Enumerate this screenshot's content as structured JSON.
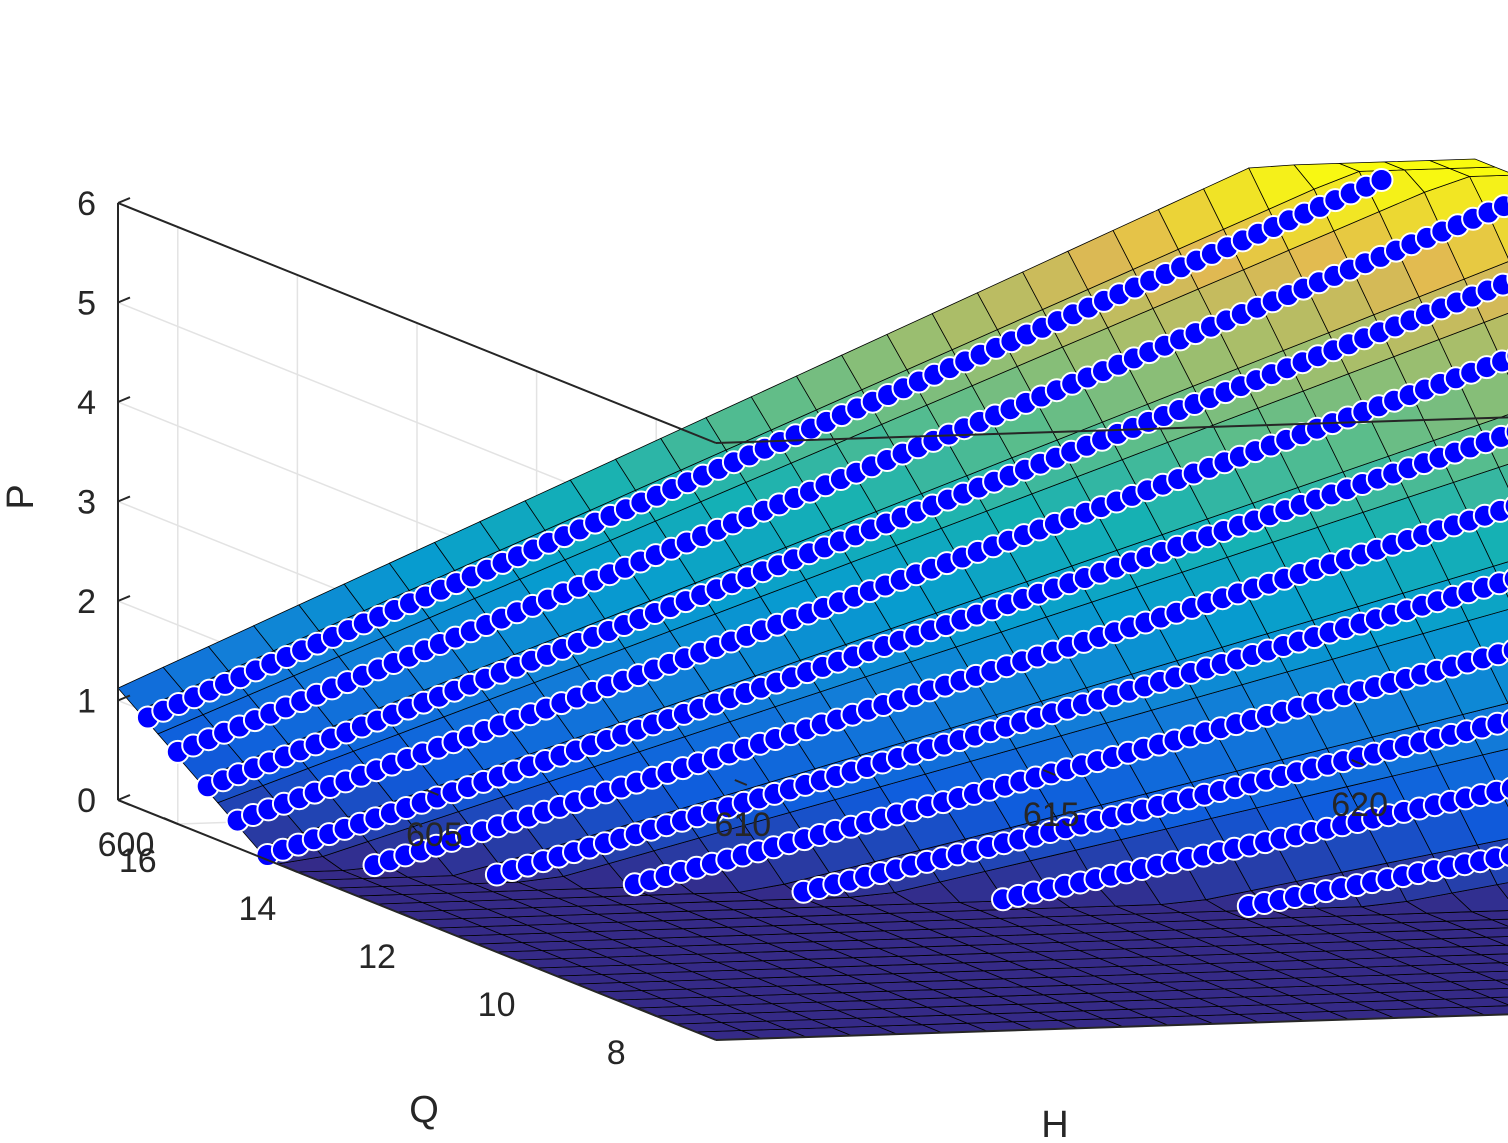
{
  "chart_data": {
    "type": "scatter",
    "subtype": "3d-surface-with-scatter",
    "title": "",
    "xlabel": "H",
    "ylabel": "Q",
    "zlabel": "P",
    "xlim": [
      600,
      622
    ],
    "ylim": [
      7,
      17
    ],
    "zlim": [
      0,
      6
    ],
    "x_ticks": [
      "600",
      "605",
      "610",
      "615",
      "620"
    ],
    "y_ticks": [
      "8",
      "10",
      "12",
      "14",
      "16"
    ],
    "z_ticks": [
      "0",
      "1",
      "2",
      "3",
      "4",
      "5",
      "6"
    ],
    "grid": true,
    "colormap": "parula",
    "surface": {
      "description_formula": "P ≈ 0.9 + 0.25·(H−600) + 0.45·(Q−16.5) + 0.03·(H−600)·(Q−16.5)",
      "h_range": [
        600,
        622
      ],
      "q_range": [
        7,
        17
      ],
      "grid_lines": 30,
      "edge_color": "#000000"
    },
    "scatter": {
      "marker_color": "#0000ff",
      "marker_edge": "#ffffff",
      "h_range": [
        600,
        622
      ],
      "q_range": [
        7.5,
        16.5
      ],
      "h_step": 0.25,
      "q_step": 0.5,
      "z_max_clip": 5.95
    }
  }
}
